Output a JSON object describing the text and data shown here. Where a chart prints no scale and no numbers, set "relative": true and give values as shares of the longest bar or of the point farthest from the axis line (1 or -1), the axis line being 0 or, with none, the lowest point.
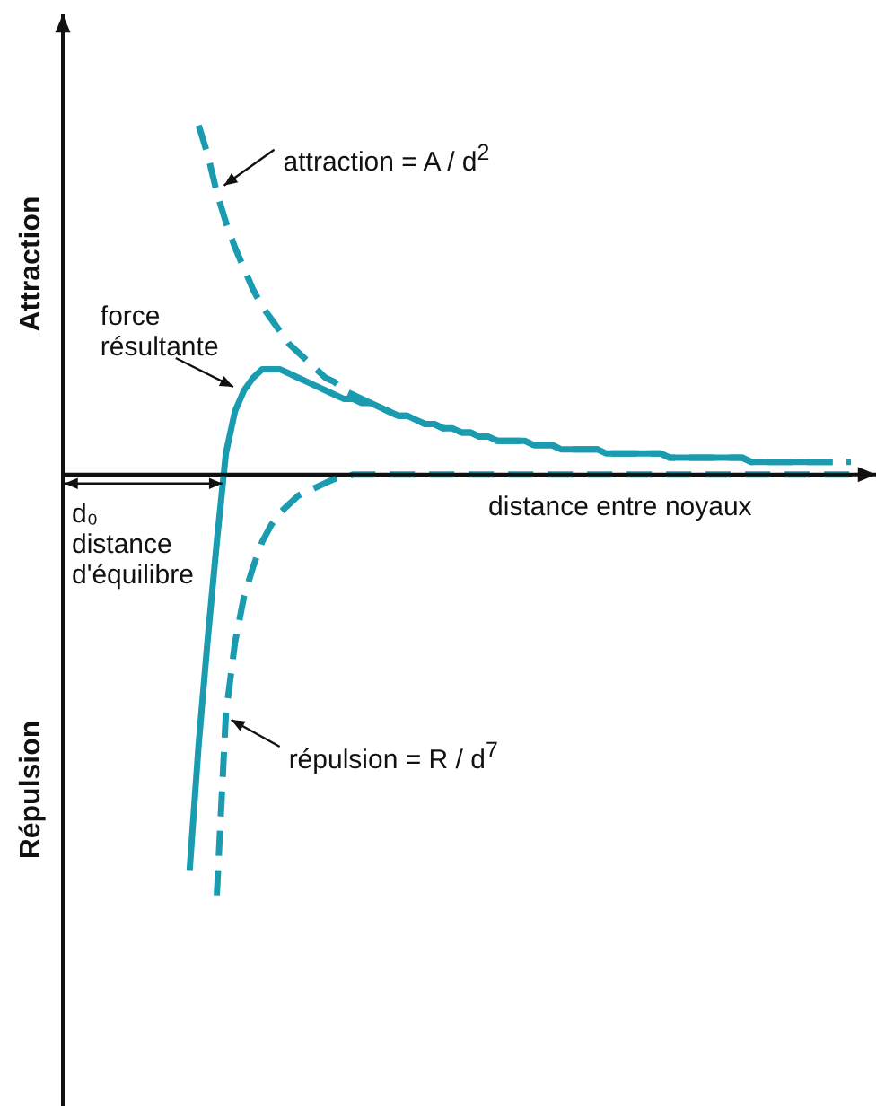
{
  "chart_data": {
    "type": "line",
    "relative": true,
    "tick_labels": false,
    "grid": false,
    "legend": false,
    "marker": "none",
    "xlabel": "distance entre noyaux",
    "ylabel": "Attraction",
    "categories": [
      null,
      null,
      null,
      null,
      null,
      null,
      null,
      null,
      null,
      null,
      null,
      null,
      null,
      null,
      null,
      null,
      null,
      null,
      null,
      null,
      null,
      null,
      null,
      null,
      null,
      null,
      null,
      null,
      null,
      null,
      null,
      null,
      null,
      null,
      null,
      null,
      null,
      null,
      null,
      null,
      null,
      null,
      null,
      null,
      null,
      null,
      null,
      null,
      null,
      null,
      null,
      null,
      null,
      null,
      null,
      null,
      null,
      null,
      null,
      null,
      null,
      null,
      null,
      null,
      null,
      null,
      null,
      null,
      null,
      null,
      null,
      null,
      null,
      null,
      null,
      null,
      null,
      null,
      null,
      null,
      null,
      null,
      null,
      null,
      null,
      null,
      null,
      null
    ],
    "series": [
      {
        "color": "#1a9bb0",
        "line_style": "dashed",
        "values": [
          null,
          null,
          null,
          null,
          null,
          null,
          null,
          null,
          null,
          null,
          null,
          null,
          null,
          null,
          null,
          0.83,
          0.76,
          0.67,
          0.6,
          0.54,
          0.49,
          0.44,
          0.4,
          0.37,
          0.34,
          0.31,
          0.29,
          0.27,
          0.25,
          0.23,
          0.22,
          0.2,
          0.19,
          0.18,
          0.17,
          0.16,
          0.15,
          0.14,
          0.14,
          0.13,
          0.12,
          0.12,
          0.11,
          0.11,
          0.1,
          0.1,
          0.09,
          0.09,
          0.08,
          0.08,
          0.08,
          0.08,
          0.07,
          0.07,
          0.07,
          0.06,
          0.06,
          0.06,
          0.06,
          0.06,
          0.05,
          0.05,
          0.05,
          0.05,
          0.05,
          0.05,
          0.05,
          0.04,
          0.04,
          0.04,
          0.04,
          0.04,
          0.04,
          0.04,
          0.04,
          0.04,
          0.03,
          0.03,
          0.03,
          0.03,
          0.03,
          0.03,
          0.03,
          0.03,
          0.03,
          0.03,
          0.03,
          0.03
        ]
      },
      {
        "color": "#1a9bb0",
        "line_style": "solid",
        "values": [
          null,
          null,
          null,
          null,
          null,
          null,
          null,
          null,
          null,
          null,
          null,
          null,
          null,
          null,
          -0.94,
          -0.64,
          -0.39,
          -0.16,
          0.05,
          0.15,
          0.2,
          0.23,
          0.25,
          0.25,
          0.25,
          0.24,
          0.23,
          0.22,
          0.21,
          0.2,
          0.19,
          0.18,
          0.18,
          0.17,
          0.17,
          0.16,
          0.15,
          0.14,
          0.14,
          0.13,
          0.12,
          0.12,
          0.11,
          0.11,
          0.1,
          0.1,
          0.09,
          0.09,
          0.08,
          0.08,
          0.08,
          0.08,
          0.07,
          0.07,
          0.07,
          0.06,
          0.06,
          0.06,
          0.06,
          0.06,
          0.05,
          0.05,
          0.05,
          0.05,
          0.05,
          0.05,
          0.05,
          0.04,
          0.04,
          0.04,
          0.04,
          0.04,
          0.04,
          0.04,
          0.04,
          0.04,
          0.03,
          0.03,
          0.03,
          0.03,
          0.03,
          0.03,
          0.03,
          0.03,
          0.03,
          0.03,
          null,
          null
        ]
      },
      {
        "color": "#1a9bb0",
        "line_style": "dashed",
        "values": [
          null,
          null,
          null,
          null,
          null,
          null,
          null,
          null,
          null,
          null,
          null,
          null,
          null,
          null,
          null,
          null,
          null,
          -1,
          -0.57,
          -0.4,
          -0.29,
          -0.22,
          -0.16,
          -0.12,
          -0.09,
          -0.07,
          -0.05,
          -0.04,
          -0.03,
          -0.02,
          -0.01,
          -0.01,
          0,
          0,
          0,
          0,
          0,
          0,
          0,
          0,
          0,
          0,
          0,
          0,
          0,
          0,
          0,
          0,
          0,
          0,
          0,
          0,
          0,
          0,
          0,
          0,
          0,
          0,
          0,
          0,
          0,
          0,
          0,
          0,
          0,
          0,
          0,
          0,
          0,
          0,
          0,
          0,
          0,
          0,
          0,
          0,
          0,
          0,
          0,
          0,
          0,
          0,
          0,
          0,
          0,
          0,
          0,
          0
        ]
      }
    ],
    "annotations": [
      "attraction = A / d$^{2}$",
      "force\nrésultante",
      "répulsion = R / d$^{7}$",
      "d₀\ndistance\nd'équilibre",
      "Répulsion"
    ]
  }
}
